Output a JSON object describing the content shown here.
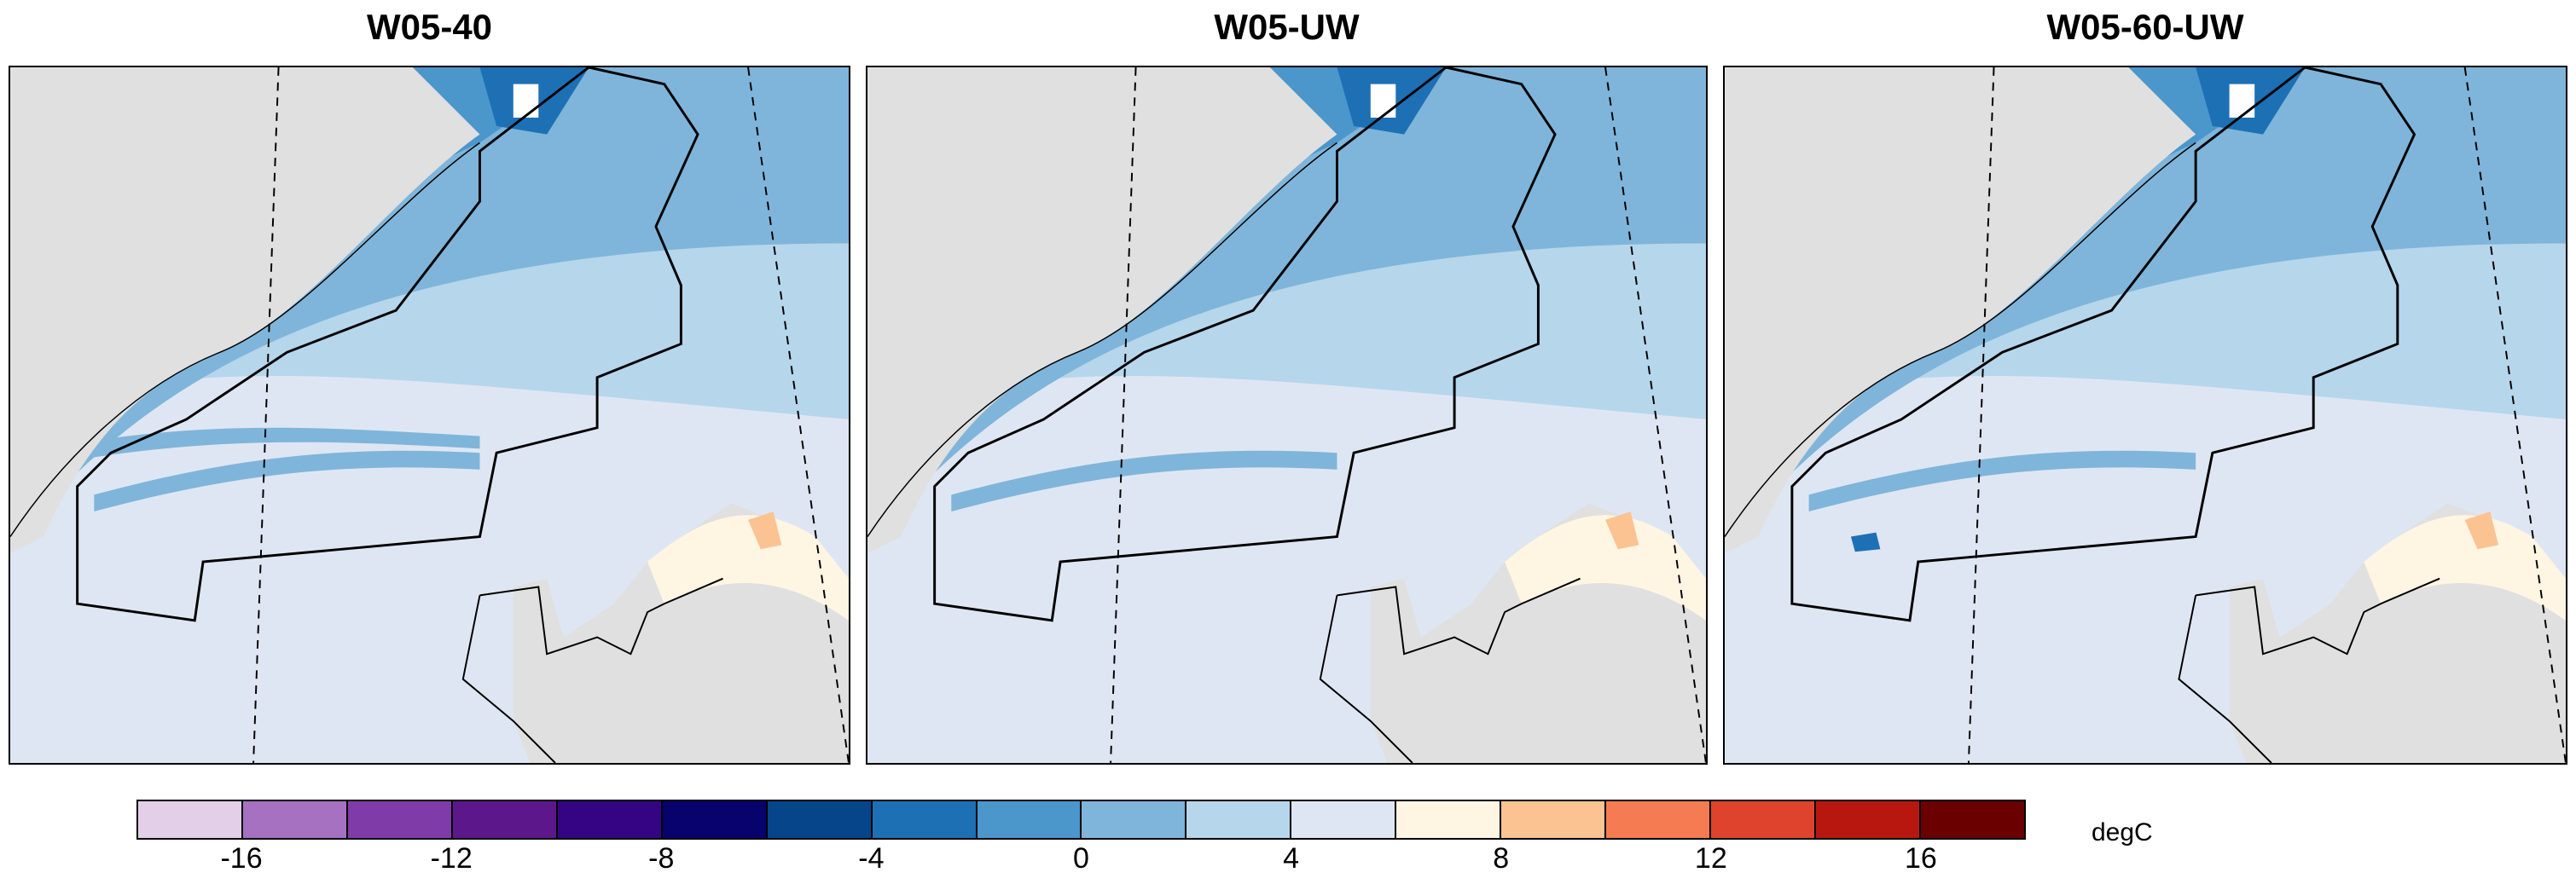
{
  "panels": [
    {
      "title": "W05-40"
    },
    {
      "title": "W05-UW"
    },
    {
      "title": "W05-60-UW"
    }
  ],
  "colorbar": {
    "unit": "degC",
    "bounds": [
      -18,
      -16,
      -14,
      -12,
      -10,
      -8,
      -6,
      -4,
      -2,
      0,
      2,
      4,
      6,
      8,
      10,
      12,
      14,
      16,
      18
    ],
    "tick_labels": [
      "-16",
      "-12",
      "-8",
      "-4",
      "0",
      "4",
      "8",
      "12",
      "16"
    ],
    "colors": [
      "#e3d0e8",
      "#a671c0",
      "#7f3ca8",
      "#5c178b",
      "#340583",
      "#08026c",
      "#07458a",
      "#1e70b5",
      "#4b97cc",
      "#7fb5da",
      "#b6d6ec",
      "#dfe6f3",
      "#fff5e3",
      "#fbc391",
      "#f57c52",
      "#df432e",
      "#b7170f",
      "#6b0000"
    ]
  },
  "map_colors": {
    "land": "#e0e0e0",
    "border": "#000000"
  }
}
